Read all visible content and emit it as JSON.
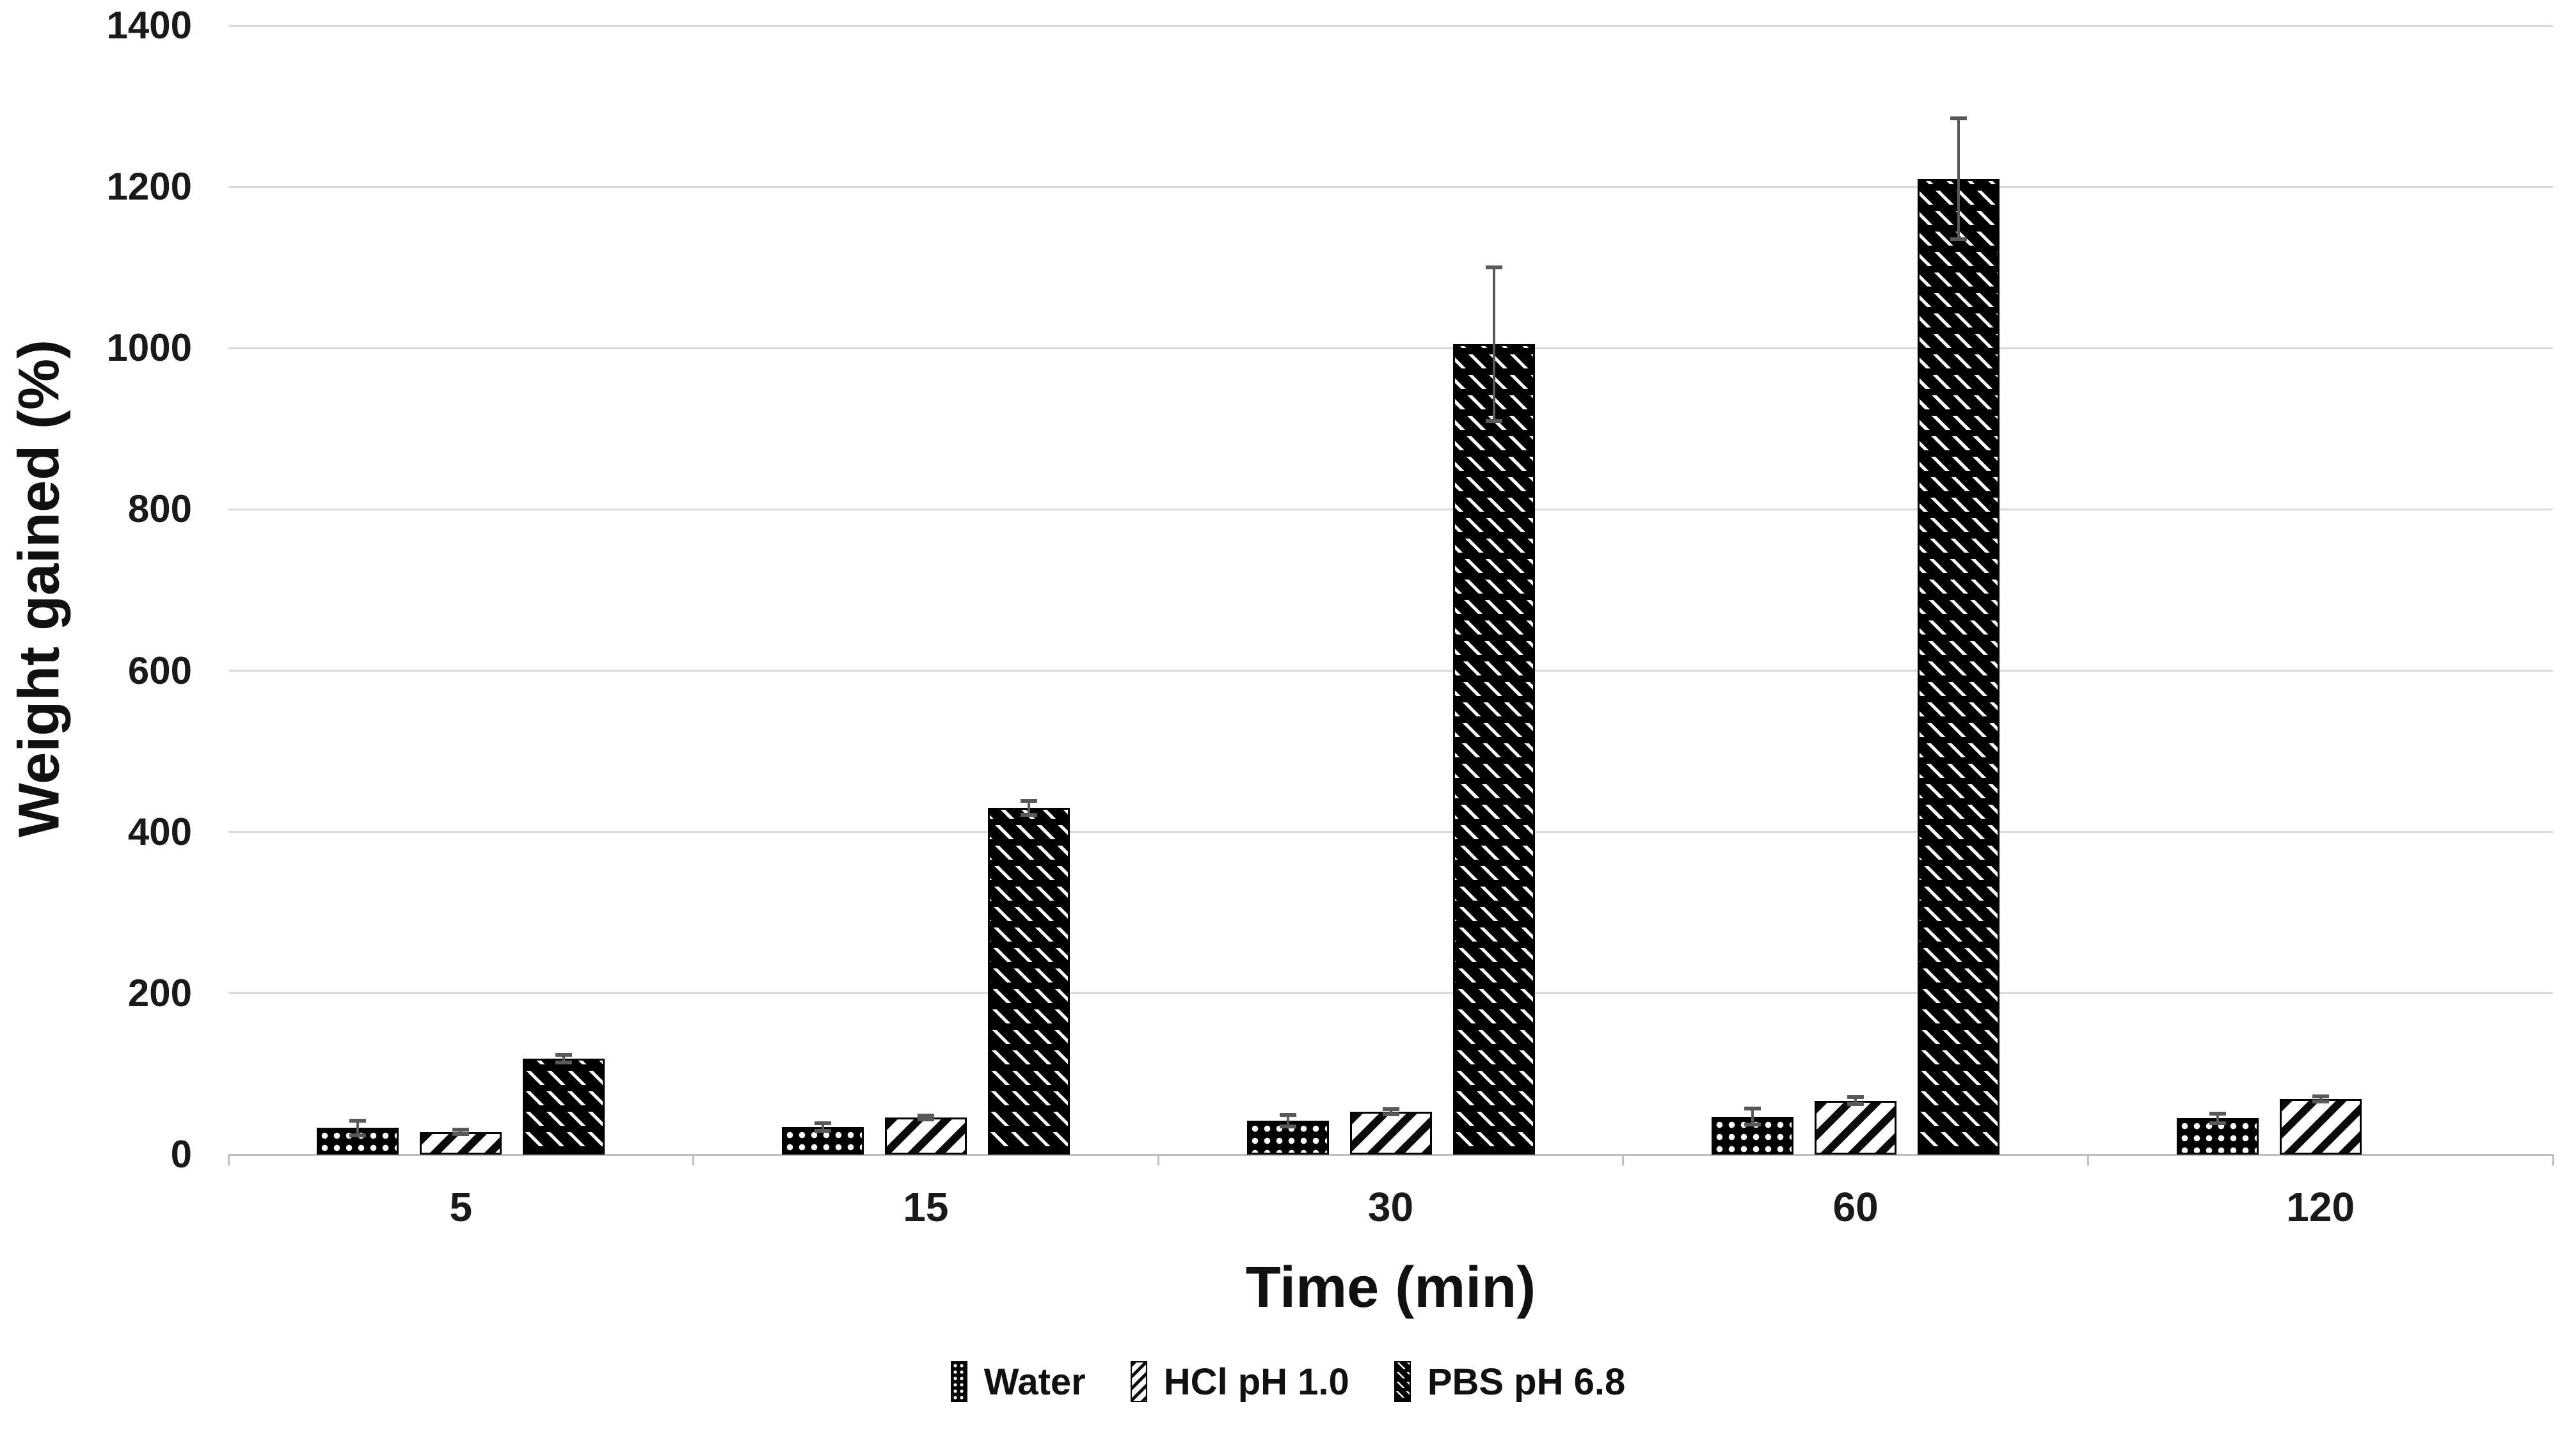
{
  "page": {
    "background": "#ffffff"
  },
  "chart_data": {
    "type": "bar",
    "title": "",
    "xlabel": "Time (min)",
    "ylabel": "Weight gained (%)",
    "categories": [
      "5",
      "15",
      "30",
      "60",
      "120"
    ],
    "series": [
      {
        "name": "Water",
        "pattern": "dots",
        "values": [
          33,
          34,
          42,
          47,
          45
        ],
        "errors": [
          9,
          5,
          7,
          10,
          6
        ]
      },
      {
        "name": "HCl pH 1.0",
        "pattern": "diagonal",
        "values": [
          28,
          46,
          53,
          67,
          69
        ],
        "errors": [
          3,
          2,
          3,
          4,
          3
        ]
      },
      {
        "name": "PBS pH 6.8",
        "pattern": "back-diagonal-dashed",
        "values": [
          119,
          430,
          1005,
          1210,
          null
        ],
        "errors": [
          5,
          9,
          95,
          75,
          null
        ]
      }
    ],
    "ylim": [
      0,
      1400
    ],
    "y_ticks": [
      0,
      200,
      400,
      600,
      800,
      1000,
      1200,
      1400
    ],
    "grid": "horizontal",
    "legend_position": "bottom",
    "bar_color": "#000000",
    "error_bar_color": "#595959",
    "gridline_color": "#d9d9d9",
    "axis_line_color": "#bfbfbf",
    "text_color": "#1a1a1a",
    "background_color": "#ffffff"
  }
}
